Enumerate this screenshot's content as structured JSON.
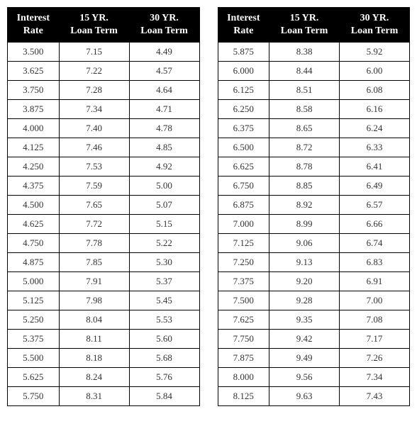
{
  "columns": [
    "Interest Rate",
    "15 YR. Loan Term",
    "30 YR. Loan Term"
  ],
  "leftTable": {
    "rows": [
      [
        "3.500",
        "7.15",
        "4.49"
      ],
      [
        "3.625",
        "7.22",
        "4.57"
      ],
      [
        "3.750",
        "7.28",
        "4.64"
      ],
      [
        "3.875",
        "7.34",
        "4.71"
      ],
      [
        "4.000",
        "7.40",
        "4.78"
      ],
      [
        "4.125",
        "7.46",
        "4.85"
      ],
      [
        "4.250",
        "7.53",
        "4.92"
      ],
      [
        "4.375",
        "7.59",
        "5.00"
      ],
      [
        "4.500",
        "7.65",
        "5.07"
      ],
      [
        "4.625",
        "7.72",
        "5.15"
      ],
      [
        "4.750",
        "7.78",
        "5.22"
      ],
      [
        "4.875",
        "7.85",
        "5.30"
      ],
      [
        "5.000",
        "7.91",
        "5.37"
      ],
      [
        "5.125",
        "7.98",
        "5.45"
      ],
      [
        "5.250",
        "8.04",
        "5.53"
      ],
      [
        "5.375",
        "8.11",
        "5.60"
      ],
      [
        "5.500",
        "8.18",
        "5.68"
      ],
      [
        "5.625",
        "8.24",
        "5.76"
      ],
      [
        "5.750",
        "8.31",
        "5.84"
      ]
    ]
  },
  "rightTable": {
    "rows": [
      [
        "5.875",
        "8.38",
        "5.92"
      ],
      [
        "6.000",
        "8.44",
        "6.00"
      ],
      [
        "6.125",
        "8.51",
        "6.08"
      ],
      [
        "6.250",
        "8.58",
        "6.16"
      ],
      [
        "6.375",
        "8.65",
        "6.24"
      ],
      [
        "6.500",
        "8.72",
        "6.33"
      ],
      [
        "6.625",
        "8.78",
        "6.41"
      ],
      [
        "6.750",
        "8.85",
        "6.49"
      ],
      [
        "6.875",
        "8.92",
        "6.57"
      ],
      [
        "7.000",
        "8.99",
        "6.66"
      ],
      [
        "7.125",
        "9.06",
        "6.74"
      ],
      [
        "7.250",
        "9.13",
        "6.83"
      ],
      [
        "7.375",
        "9.20",
        "6.91"
      ],
      [
        "7.500",
        "9.28",
        "7.00"
      ],
      [
        "7.625",
        "9.35",
        "7.08"
      ],
      [
        "7.750",
        "9.42",
        "7.17"
      ],
      [
        "7.875",
        "9.49",
        "7.26"
      ],
      [
        "8.000",
        "9.56",
        "7.34"
      ],
      [
        "8.125",
        "9.63",
        "7.43"
      ]
    ]
  }
}
